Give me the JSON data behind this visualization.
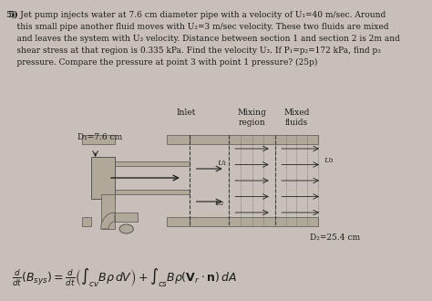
{
  "background_color": "#c8c0b8",
  "text_color": "#1a1a1a",
  "problem_number": "5)",
  "problem_text_lines": [
    "Jet pump injects water at 7.6 cm diameter pipe with a velocity of U₁=40 m/sec. Around",
    "this small pipe another fluid moves with U₂=3 m/sec velocity. These two fluids are mixed",
    "and leaves the system with U₃ velocity. Distance between section 1 and section 2 is 2m and",
    "shear stress at that region is 0.335 kPa. Find the velocity U₃. If P₁=p₂=172 kPa, find p₃",
    "pressure. Compare the pressure at point 3 with point 1 pressure? (25p)"
  ],
  "label_D1": "D₁=7.6 cm",
  "label_inlet": "Inlet",
  "label_mixing": "Mixing",
  "label_region": "region",
  "label_mixed": "Mixed",
  "label_fluids": "fluids",
  "label_U1": "U₁",
  "label_U2": "U₂",
  "label_U3": "U₃",
  "label_D2": "D₂=25.4 cm",
  "formula": "$\\frac{d}{dt}(B_{sys}) = \\frac{d}{dt}\\left(\\int_{cv} B\\rho\\, dV\\right) + \\int_{cs} B\\rho(\\mathbf{V}_r \\cdot \\mathbf{n})\\, dA$"
}
